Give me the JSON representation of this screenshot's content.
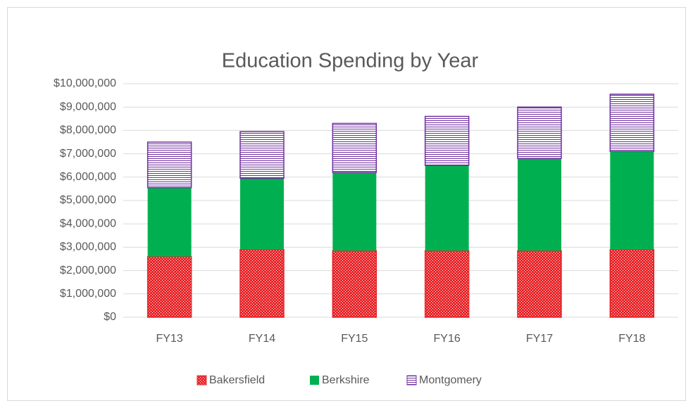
{
  "chart_data": {
    "type": "stacked_bar",
    "title": "Education Spending by Year",
    "categories": [
      "FY13",
      "FY14",
      "FY15",
      "FY16",
      "FY17",
      "FY18"
    ],
    "series": [
      {
        "name": "Bakersfield",
        "color": "#e8262a",
        "values": [
          2600000,
          2900000,
          2850000,
          2850000,
          2850000,
          2900000
        ]
      },
      {
        "name": "Berkshire",
        "color": "#00b050",
        "values": [
          2950000,
          3050000,
          3350000,
          3650000,
          3950000,
          4200000
        ]
      },
      {
        "name": "Montgomery",
        "color": "#7030a0",
        "values": [
          1950000,
          2000000,
          2100000,
          2100000,
          2200000,
          2450000
        ]
      }
    ],
    "ylim": [
      0,
      10000000
    ],
    "yticks": [
      {
        "value": 0,
        "label": "$0"
      },
      {
        "value": 1000000,
        "label": "$1,000,000"
      },
      {
        "value": 2000000,
        "label": "$2,000,000"
      },
      {
        "value": 3000000,
        "label": "$3,000,000"
      },
      {
        "value": 4000000,
        "label": "$4,000,000"
      },
      {
        "value": 5000000,
        "label": "$5,000,000"
      },
      {
        "value": 6000000,
        "label": "$6,000,000"
      },
      {
        "value": 7000000,
        "label": "$7,000,000"
      },
      {
        "value": 8000000,
        "label": "$8,000,000"
      },
      {
        "value": 9000000,
        "label": "$9,000,000"
      },
      {
        "value": 10000000,
        "label": "$10,000,000"
      }
    ],
    "grid": true,
    "legend": "bottom"
  }
}
